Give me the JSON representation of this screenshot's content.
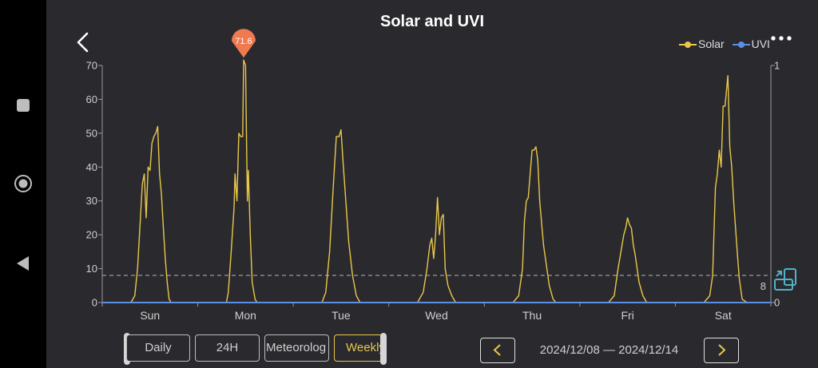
{
  "app": {
    "title": "Solar and UVI"
  },
  "legend": [
    {
      "label": "Solar",
      "color": "#e8c74a"
    },
    {
      "label": "UVI",
      "color": "#5b8fe6"
    }
  ],
  "tabs": [
    {
      "label": "Daily",
      "active": false
    },
    {
      "label": "24H",
      "active": false
    },
    {
      "label": "Meteorolog",
      "active": false
    },
    {
      "label": "Weekly",
      "active": true
    }
  ],
  "date_range": "2024/12/08 — 2024/12/14",
  "icons": {
    "back": "chevron-left-icon",
    "menu": "more-dots-icon",
    "prev": "chevron-left-icon",
    "next": "chevron-right-icon",
    "calibration": "calibration-icon"
  },
  "chart_data": {
    "type": "line",
    "categories": [
      "Sun",
      "Mon",
      "Tue",
      "Wed",
      "Thu",
      "Fri",
      "Sat"
    ],
    "ylim": [
      0,
      70
    ],
    "yticks": [
      0,
      10,
      20,
      30,
      40,
      50,
      60,
      70
    ],
    "y2lim": [
      0,
      1
    ],
    "y2ticks": [
      0,
      1
    ],
    "reference_line": {
      "value": 8,
      "label": "8"
    },
    "peak_marker": {
      "label": "71.6",
      "value": 71.6,
      "day": "Mon"
    },
    "legend_position": "top-right",
    "grid": false,
    "series": [
      {
        "name": "Solar",
        "color": "#e8c74a",
        "axis": "left",
        "points": [
          [
            0.0,
            0
          ],
          [
            0.3,
            0
          ],
          [
            0.34,
            2
          ],
          [
            0.37,
            10
          ],
          [
            0.4,
            25
          ],
          [
            0.42,
            35
          ],
          [
            0.44,
            38
          ],
          [
            0.46,
            25
          ],
          [
            0.48,
            40
          ],
          [
            0.5,
            39
          ],
          [
            0.52,
            47
          ],
          [
            0.54,
            49
          ],
          [
            0.56,
            50
          ],
          [
            0.58,
            52
          ],
          [
            0.6,
            38
          ],
          [
            0.62,
            32
          ],
          [
            0.64,
            22
          ],
          [
            0.66,
            13
          ],
          [
            0.68,
            6
          ],
          [
            0.7,
            1
          ],
          [
            0.72,
            0
          ],
          [
            1.3,
            0
          ],
          [
            1.32,
            3
          ],
          [
            1.35,
            15
          ],
          [
            1.38,
            28
          ],
          [
            1.39,
            38
          ],
          [
            1.41,
            30
          ],
          [
            1.43,
            50
          ],
          [
            1.45,
            49
          ],
          [
            1.47,
            49
          ],
          [
            1.48,
            71.6
          ],
          [
            1.5,
            70
          ],
          [
            1.51,
            48
          ],
          [
            1.52,
            30
          ],
          [
            1.53,
            39
          ],
          [
            1.55,
            20
          ],
          [
            1.57,
            6
          ],
          [
            1.6,
            1
          ],
          [
            1.62,
            0
          ],
          [
            2.3,
            0
          ],
          [
            2.34,
            3
          ],
          [
            2.38,
            15
          ],
          [
            2.42,
            35
          ],
          [
            2.45,
            49
          ],
          [
            2.48,
            49
          ],
          [
            2.5,
            51
          ],
          [
            2.52,
            42
          ],
          [
            2.55,
            30
          ],
          [
            2.58,
            18
          ],
          [
            2.62,
            8
          ],
          [
            2.66,
            2
          ],
          [
            2.7,
            0
          ],
          [
            3.3,
            0
          ],
          [
            3.36,
            3
          ],
          [
            3.4,
            10
          ],
          [
            3.43,
            17
          ],
          [
            3.45,
            19
          ],
          [
            3.47,
            13
          ],
          [
            3.49,
            20
          ],
          [
            3.51,
            31
          ],
          [
            3.53,
            20
          ],
          [
            3.55,
            25
          ],
          [
            3.57,
            26
          ],
          [
            3.59,
            10
          ],
          [
            3.62,
            5
          ],
          [
            3.66,
            2
          ],
          [
            3.7,
            0
          ],
          [
            4.3,
            0
          ],
          [
            4.36,
            2
          ],
          [
            4.4,
            10
          ],
          [
            4.42,
            24
          ],
          [
            4.44,
            30
          ],
          [
            4.46,
            31
          ],
          [
            4.48,
            38
          ],
          [
            4.5,
            45
          ],
          [
            4.52,
            45
          ],
          [
            4.54,
            46
          ],
          [
            4.56,
            42
          ],
          [
            4.58,
            30
          ],
          [
            4.62,
            17
          ],
          [
            4.65,
            11
          ],
          [
            4.68,
            5
          ],
          [
            4.72,
            1
          ],
          [
            4.75,
            0
          ],
          [
            5.3,
            0
          ],
          [
            5.36,
            2
          ],
          [
            5.4,
            10
          ],
          [
            5.43,
            15
          ],
          [
            5.46,
            20
          ],
          [
            5.48,
            22
          ],
          [
            5.5,
            25
          ],
          [
            5.52,
            23
          ],
          [
            5.54,
            22
          ],
          [
            5.56,
            17
          ],
          [
            5.58,
            14
          ],
          [
            5.6,
            10
          ],
          [
            5.62,
            6
          ],
          [
            5.66,
            2
          ],
          [
            5.7,
            0
          ],
          [
            6.3,
            0
          ],
          [
            6.36,
            2
          ],
          [
            6.39,
            8
          ],
          [
            6.42,
            34
          ],
          [
            6.44,
            38
          ],
          [
            6.46,
            45
          ],
          [
            6.48,
            40
          ],
          [
            6.5,
            58
          ],
          [
            6.52,
            58
          ],
          [
            6.55,
            67
          ],
          [
            6.57,
            46
          ],
          [
            6.59,
            40
          ],
          [
            6.61,
            30
          ],
          [
            6.63,
            22
          ],
          [
            6.65,
            14
          ],
          [
            6.67,
            7
          ],
          [
            6.7,
            1
          ],
          [
            6.75,
            0
          ],
          [
            7.0,
            0
          ]
        ]
      },
      {
        "name": "UVI",
        "color": "#5b8fe6",
        "axis": "right",
        "points": [
          [
            0.0,
            0
          ],
          [
            7.0,
            0
          ]
        ]
      }
    ]
  }
}
